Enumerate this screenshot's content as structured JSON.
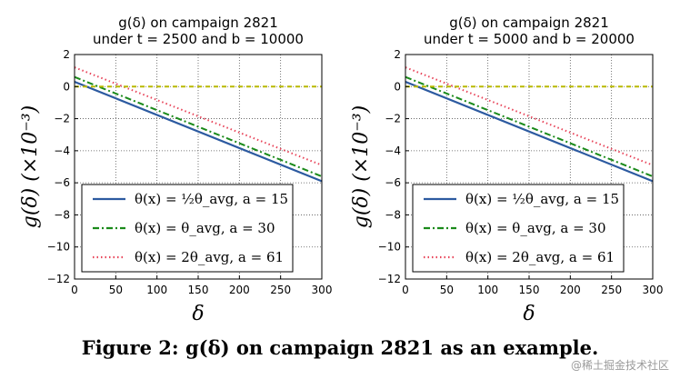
{
  "chart_data": [
    {
      "type": "line",
      "title_lines": [
        "g(δ) on campaign 2821",
        "under t = 2500 and b = 10000"
      ],
      "xlabel": "δ",
      "ylabel": "g(δ) (×10⁻³)",
      "xlim": [
        0,
        300
      ],
      "ylim": [
        -12,
        2
      ],
      "xticks": [
        0,
        50,
        100,
        150,
        200,
        250,
        300
      ],
      "yticks": [
        2,
        0,
        -2,
        -4,
        -6,
        -8,
        -10,
        -12
      ],
      "grid": true,
      "legend_position": "lower-left",
      "series": [
        {
          "name": "θ(x) = ½θ_avg, a = 15",
          "color": "#2c5aa0",
          "style": "solid",
          "x": [
            0,
            300
          ],
          "y": [
            0.3,
            -5.9
          ]
        },
        {
          "name": "θ(x) = θ_avg, a = 30",
          "color": "#1a8a1a",
          "style": "dashdot",
          "x": [
            0,
            300
          ],
          "y": [
            0.6,
            -5.6
          ]
        },
        {
          "name": "θ(x) = 2θ_avg, a = 61",
          "color": "#e8455a",
          "style": "dotted",
          "x": [
            0,
            300
          ],
          "y": [
            1.2,
            -4.9
          ]
        },
        {
          "name": "",
          "color": "#b8b800",
          "style": "dashed",
          "x": [
            0,
            300
          ],
          "y": [
            0,
            0
          ]
        }
      ]
    },
    {
      "type": "line",
      "title_lines": [
        "g(δ) on campaign 2821",
        "under t = 5000 and b = 20000"
      ],
      "xlabel": "δ",
      "ylabel": "g(δ) (×10⁻³)",
      "xlim": [
        0,
        300
      ],
      "ylim": [
        -12,
        2
      ],
      "xticks": [
        0,
        50,
        100,
        150,
        200,
        250,
        300
      ],
      "yticks": [
        2,
        0,
        -2,
        -4,
        -6,
        -8,
        -10,
        -12
      ],
      "grid": true,
      "legend_position": "lower-left",
      "series": [
        {
          "name": "θ(x) = ½θ_avg, a = 15",
          "color": "#2c5aa0",
          "style": "solid",
          "x": [
            0,
            300
          ],
          "y": [
            0.3,
            -5.9
          ]
        },
        {
          "name": "θ(x) = θ_avg, a = 30",
          "color": "#1a8a1a",
          "style": "dashdot",
          "x": [
            0,
            300
          ],
          "y": [
            0.6,
            -5.6
          ]
        },
        {
          "name": "θ(x) = 2θ_avg, a = 61",
          "color": "#e8455a",
          "style": "dotted",
          "x": [
            0,
            300
          ],
          "y": [
            1.2,
            -4.9
          ]
        },
        {
          "name": "",
          "color": "#b8b800",
          "style": "dashed",
          "x": [
            0,
            300
          ],
          "y": [
            0,
            0
          ]
        }
      ]
    }
  ],
  "caption": "Figure 2: g(δ) on campaign 2821 as an example.",
  "watermark": "@稀土掘金技术社区"
}
